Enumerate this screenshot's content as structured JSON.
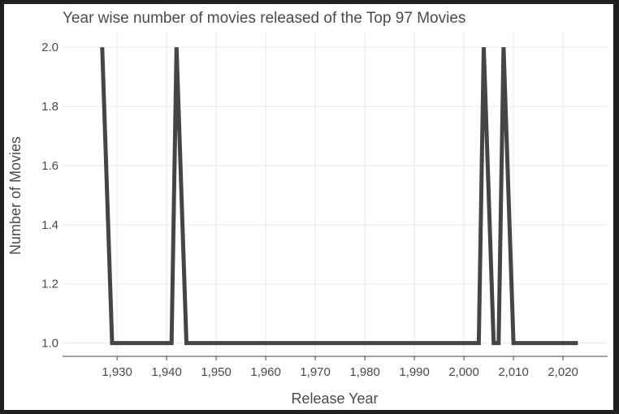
{
  "chart_data": {
    "type": "line",
    "title": "Year wise number of movies released of the Top 97 Movies",
    "xlabel": "Release Year",
    "ylabel": "Number of Movies",
    "xlim": [
      1919,
      2029
    ],
    "ylim": [
      0.955,
      2.05
    ],
    "x_ticks": [
      1930,
      1940,
      1950,
      1960,
      1970,
      1980,
      1990,
      2000,
      2010,
      2020
    ],
    "x_tick_labels": [
      "1,930",
      "1,940",
      "1,950",
      "1,960",
      "1,970",
      "1,980",
      "1,990",
      "2,000",
      "2,010",
      "2,020"
    ],
    "y_ticks": [
      1.0,
      1.2,
      1.4,
      1.6,
      1.8,
      2.0
    ],
    "y_tick_labels": [
      "1.0",
      "1.2",
      "1.4",
      "1.6",
      "1.8",
      "2.0"
    ],
    "grid": true,
    "legend": "none",
    "series": [
      {
        "color": "#454545",
        "x": [
          1927,
          1929,
          1941,
          1942,
          1944,
          2003,
          2004,
          2006,
          2007,
          2008,
          2010,
          2023
        ],
        "y": [
          2,
          1,
          1,
          2,
          1,
          1,
          2,
          1,
          1,
          2,
          1,
          1
        ]
      }
    ]
  }
}
